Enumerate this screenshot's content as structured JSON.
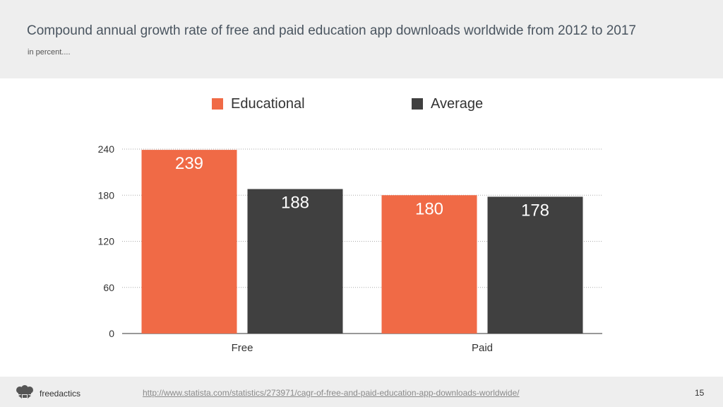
{
  "header": {
    "title": "Compound annual growth rate of free and paid education app downloads worldwide from 2012 to 2017",
    "subtitle": "in percent...."
  },
  "footer": {
    "brand": "freedactics",
    "source_url": "http://www.statista.com/statistics/273971/cagr-of-free-and-paid-education-app-downloads-worldwide/",
    "page_number": "15",
    "logo_icon": "chef-hat-logo-icon"
  },
  "colors": {
    "educational": "#f06a46",
    "average": "#404040",
    "grid": "#aaaaaa",
    "axis": "#333333"
  },
  "chart_data": {
    "type": "bar",
    "categories": [
      "Free",
      "Paid"
    ],
    "series": [
      {
        "name": "Educational",
        "values": [
          239,
          180
        ],
        "value_labels": [
          "239",
          "180"
        ]
      },
      {
        "name": "Average",
        "values": [
          188,
          178
        ],
        "value_labels": [
          "188",
          "178"
        ]
      }
    ],
    "y_ticks": [
      "0",
      "60",
      "120",
      "180",
      "240"
    ],
    "ylim": [
      0,
      240
    ],
    "grid": true,
    "legend_position": "top"
  }
}
